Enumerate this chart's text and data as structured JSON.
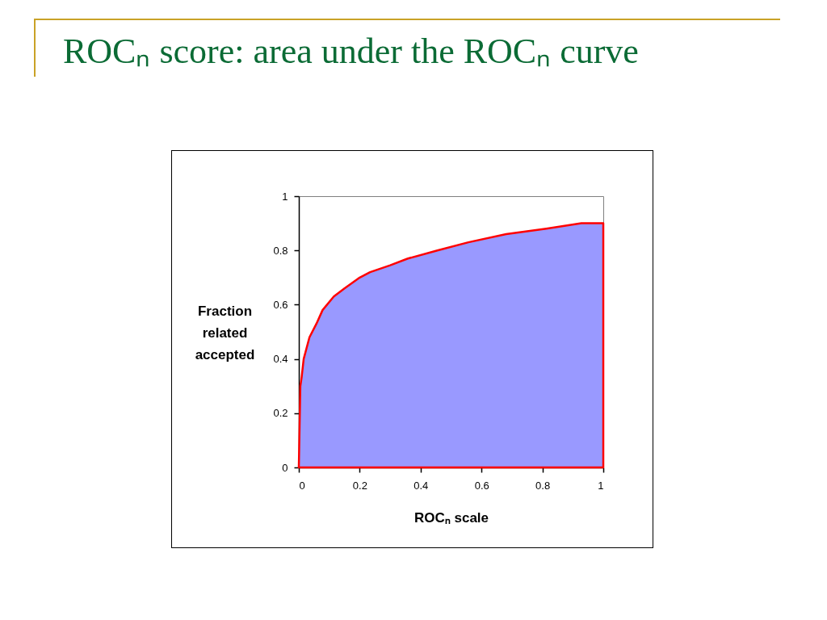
{
  "chart_data": {
    "type": "area",
    "title": "ROCₙ score: area under the ROCₙ curve",
    "xlabel": "ROCₙ scale",
    "ylabel": "Fraction related accepted",
    "x": [
      0,
      0.005,
      0.009,
      0.016,
      0.035,
      0.058,
      0.078,
      0.115,
      0.15,
      0.2,
      0.234,
      0.3,
      0.358,
      0.455,
      0.557,
      0.681,
      0.813,
      0.928,
      1
    ],
    "values": [
      0,
      0.3,
      0.33,
      0.4,
      0.48,
      0.53,
      0.58,
      0.63,
      0.66,
      0.7,
      0.72,
      0.745,
      0.77,
      0.8,
      0.83,
      0.86,
      0.88,
      0.9,
      0.9
    ],
    "color": "#9999ff",
    "xlim": [
      0,
      1
    ],
    "ylim": [
      0,
      1
    ],
    "xticks": [
      0,
      0.2,
      0.4,
      0.6,
      0.8,
      1
    ],
    "yticks": [
      0,
      0.2,
      0.4,
      0.6,
      0.8,
      1
    ]
  }
}
